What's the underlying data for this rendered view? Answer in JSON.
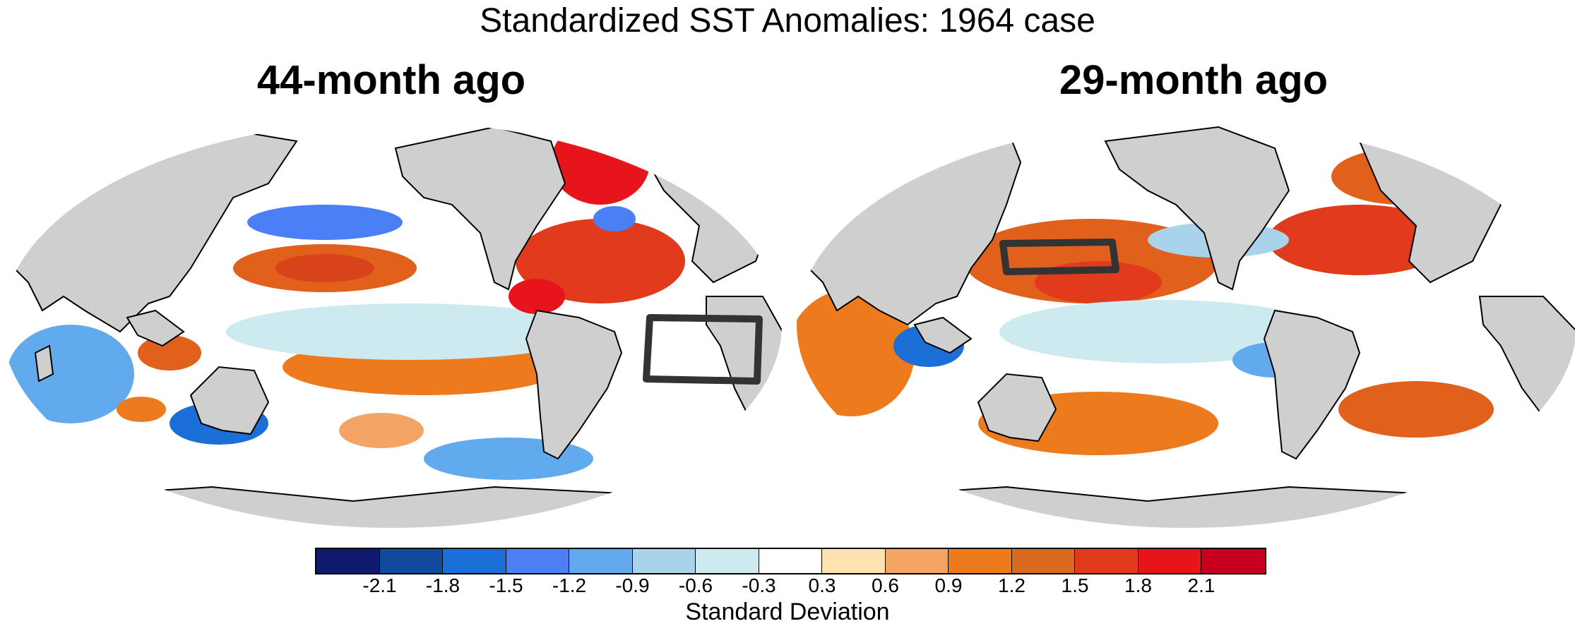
{
  "title": "Standardized SST Anomalies: 1964 case",
  "panels": [
    {
      "title": "44-month ago"
    },
    {
      "title": "29-month ago"
    }
  ],
  "colorbar": {
    "label": "Standard Deviation",
    "ticks": [
      "-2.1",
      "-1.8",
      "-1.5",
      "-1.2",
      "-0.9",
      "-0.6",
      "-0.3",
      "0.3",
      "0.6",
      "0.9",
      "1.2",
      "1.5",
      "1.8",
      "2.1"
    ],
    "colors": [
      "#101a6e",
      "#124b9c",
      "#1b6fd6",
      "#4a7ff5",
      "#62aaee",
      "#a9d3ea",
      "#cceaf0",
      "#ffffff",
      "#fde3b2",
      "#f4a565",
      "#ed7a1c",
      "#d96a1f",
      "#e23a1c",
      "#e8141c",
      "#c8001e"
    ]
  },
  "colors": {
    "land": "#cfcfcf",
    "ocean_neutral": "#ffffff",
    "box": "#333333"
  }
}
